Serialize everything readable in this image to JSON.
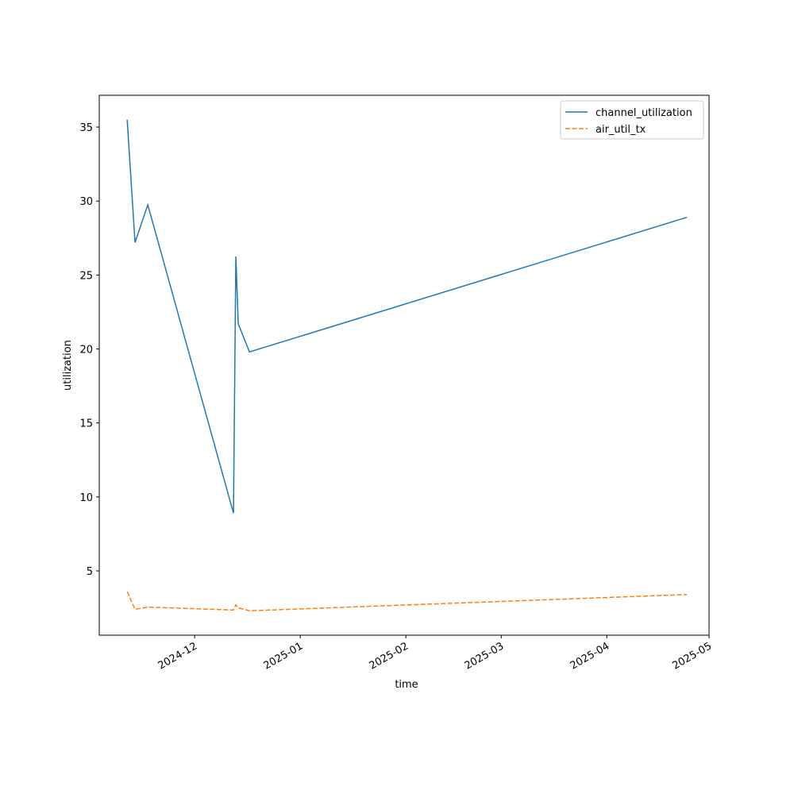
{
  "chart_data": {
    "type": "line",
    "x_label": "time",
    "y_label": "utilization",
    "x": [
      20038.2,
      20040.5,
      20044.25,
      20069.4,
      20070.1,
      20070.8,
      20074.1,
      20202.5
    ],
    "series": [
      {
        "name": "channel_utilization",
        "color": "#1f77b4",
        "dash": "solid",
        "values": [
          35.5,
          27.2,
          29.75,
          8.9,
          26.25,
          21.7,
          19.8,
          28.9
        ]
      },
      {
        "name": "air_util_tx",
        "color": "#ff7f0e",
        "dash": "dashed",
        "values": [
          3.6,
          2.4,
          2.55,
          2.35,
          2.7,
          2.5,
          2.3,
          3.4
        ]
      }
    ],
    "xlim": [
      20030,
      20209
    ],
    "xticks": [
      {
        "value": 20058,
        "label": "2024-12"
      },
      {
        "value": 20089,
        "label": "2025-01"
      },
      {
        "value": 20120,
        "label": "2025-02"
      },
      {
        "value": 20148,
        "label": "2025-03"
      },
      {
        "value": 20179,
        "label": "2025-04"
      },
      {
        "value": 20209,
        "label": "2025-05"
      }
    ],
    "ylim": [
      0.65,
      37.15
    ],
    "yticks": [
      5,
      10,
      15,
      20,
      25,
      30,
      35
    ],
    "legend": "upper right",
    "grid": false
  }
}
